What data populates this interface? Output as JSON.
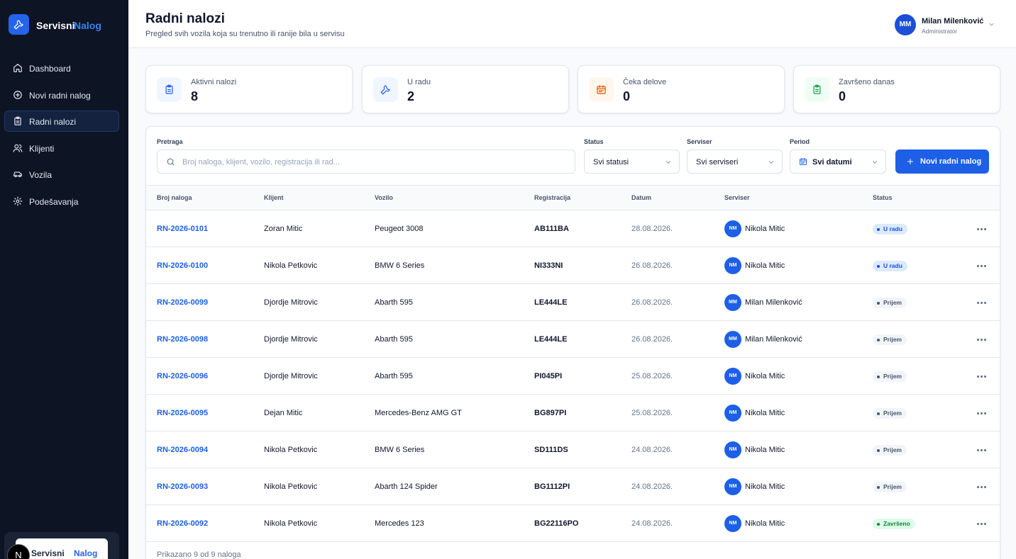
{
  "sidebar": {
    "brand": [
      "Servisni",
      "Nalog"
    ],
    "nav": [
      "Dashboard",
      "Novi radni nalog",
      "Radni nalozi",
      "Klijenti",
      "Vozila",
      "Podešavanja"
    ],
    "active": 2,
    "footer_logo": [
      "Servisni",
      "Nalog"
    ],
    "dev_badge": "N"
  },
  "header": {
    "title": "Radni nalozi",
    "subtitle": "Pregled svih vozila koja su trenutno ili ranije bila u servisu",
    "user": {
      "initials": "MM",
      "name": "Milan Milenković",
      "role": "Administrator"
    }
  },
  "stats": [
    {
      "label": "Aktivni nalozi",
      "value": 8,
      "color": "#2563eb",
      "bg": "#eff6ff"
    },
    {
      "label": "U radu",
      "value": 2,
      "color": "#2563eb",
      "bg": "#eff6ff"
    },
    {
      "label": "Čeka delove",
      "value": 0,
      "color": "#ea580c",
      "bg": "#fff7ed"
    },
    {
      "label": "Završeno danas",
      "value": 0,
      "color": "#16a34a",
      "bg": "#f0fdf4"
    }
  ],
  "filters": {
    "search": {
      "label": "Pretraga",
      "placeholder": "Broj naloga, klijent, vozilo, registracija ili rad..."
    },
    "status": {
      "label": "Status",
      "value": "Svi statusi"
    },
    "serviser": {
      "label": "Serviser",
      "value": "Svi serviseri"
    },
    "period": {
      "label": "Period",
      "value": "Svi datumi"
    },
    "button": "Novi radni nalog"
  },
  "table": {
    "columns": [
      "Broj naloga",
      "Klijent",
      "Vozilo",
      "Registracija",
      "Datum",
      "Serviser",
      "Status"
    ],
    "rows": [
      {
        "id": "RN-2026-0101",
        "client": "Zoran Mitic",
        "vehicle": "Peugeot 3008",
        "plate": "AB111BA",
        "date": "28.08.2026.",
        "initials": "NM",
        "serviser": "Nikola Mitic",
        "status": "U radu",
        "status_color": "#1d4ed8",
        "status_bg": "#dbeafe"
      },
      {
        "id": "RN-2026-0100",
        "client": "Nikola Petkovic",
        "vehicle": "BMW 6 Series",
        "plate": "NI333NI",
        "date": "26.08.2026.",
        "initials": "NM",
        "serviser": "Nikola Mitic",
        "status": "U radu",
        "status_color": "#1d4ed8",
        "status_bg": "#dbeafe"
      },
      {
        "id": "RN-2026-0099",
        "client": "Djordje Mitrovic",
        "vehicle": "Abarth 595",
        "plate": "LE444LE",
        "date": "26.08.2026.",
        "initials": "MM",
        "serviser": "Milan Milenković",
        "status": "Prijem",
        "status_color": "#475569",
        "status_bg": "#f1f5f9"
      },
      {
        "id": "RN-2026-0098",
        "client": "Djordje Mitrovic",
        "vehicle": "Abarth 595",
        "plate": "LE444LE",
        "date": "26.08.2026.",
        "initials": "MM",
        "serviser": "Milan Milenković",
        "status": "Prijem",
        "status_color": "#475569",
        "status_bg": "#f1f5f9"
      },
      {
        "id": "RN-2026-0096",
        "client": "Djordje Mitrovic",
        "vehicle": "Abarth 595",
        "plate": "PI045PI",
        "date": "25.08.2026.",
        "initials": "NM",
        "serviser": "Nikola Mitic",
        "status": "Prijem",
        "status_color": "#475569",
        "status_bg": "#f1f5f9"
      },
      {
        "id": "RN-2026-0095",
        "client": "Dejan Mitic",
        "vehicle": "Mercedes-Benz AMG GT",
        "plate": "BG897PI",
        "date": "25.08.2026.",
        "initials": "NM",
        "serviser": "Nikola Mitic",
        "status": "Prijem",
        "status_color": "#475569",
        "status_bg": "#f1f5f9"
      },
      {
        "id": "RN-2026-0094",
        "client": "Nikola Petkovic",
        "vehicle": "BMW 6 Series",
        "plate": "SD111DS",
        "date": "24.08.2026.",
        "initials": "NM",
        "serviser": "Nikola Mitic",
        "status": "Prijem",
        "status_color": "#475569",
        "status_bg": "#f1f5f9"
      },
      {
        "id": "RN-2026-0093",
        "client": "Nikola Petkovic",
        "vehicle": "Abarth 124 Spider",
        "plate": "BG1112PI",
        "date": "24.08.2026.",
        "initials": "NM",
        "serviser": "Nikola Mitic",
        "status": "Prijem",
        "status_color": "#475569",
        "status_bg": "#f1f5f9"
      },
      {
        "id": "RN-2026-0092",
        "client": "Nikola Petkovic",
        "vehicle": "Mercedes 123",
        "plate": "BG22116PO",
        "date": "24.08.2026.",
        "initials": "NM",
        "serviser": "Nikola Mitic",
        "status": "Završeno",
        "status_color": "#15803d",
        "status_bg": "#dcfce7"
      }
    ],
    "footer": "Prikazano 9 od 9 naloga"
  }
}
